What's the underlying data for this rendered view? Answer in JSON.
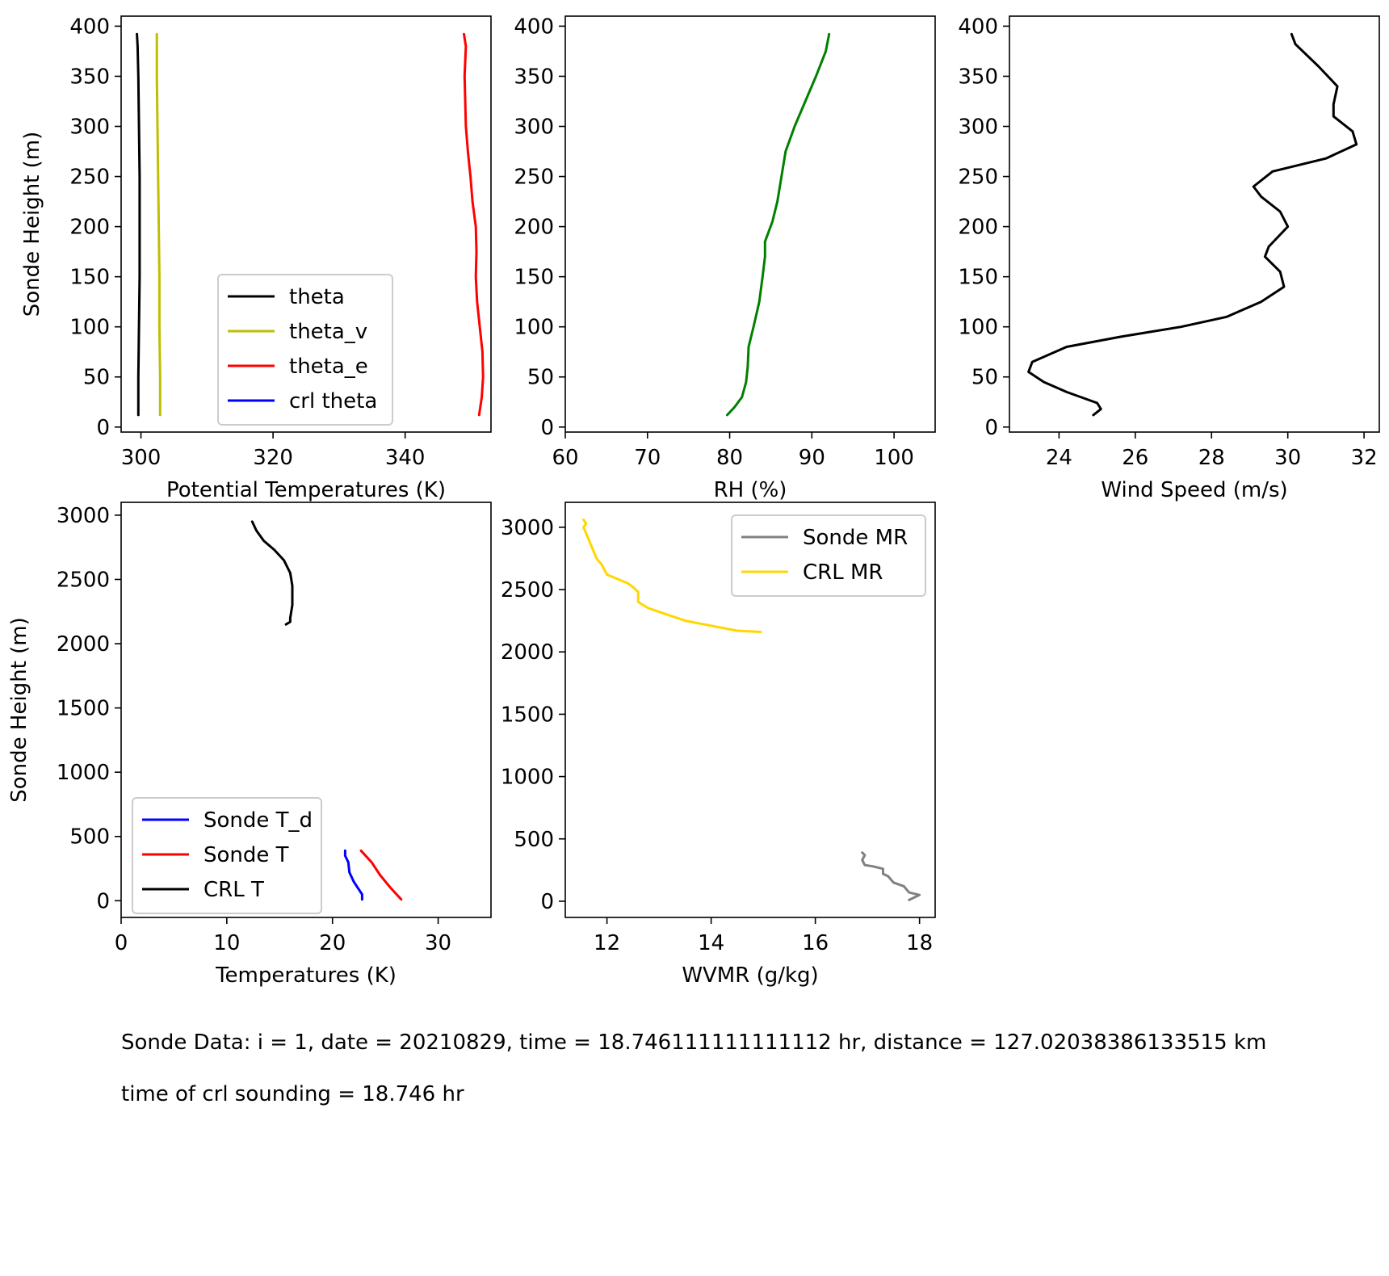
{
  "chart_data": [
    {
      "id": "potential-temperature",
      "type": "line",
      "xlabel": "Potential Temperatures (K)",
      "ylabel": "Sonde Height (m)",
      "xlim": [
        297,
        353
      ],
      "ylim": [
        -5,
        410
      ],
      "xticks": [
        300,
        320,
        340
      ],
      "yticks": [
        0,
        50,
        100,
        150,
        200,
        250,
        300,
        350,
        400
      ],
      "grid": false,
      "legend": "lower-center",
      "series": [
        {
          "name": "theta",
          "color": "#000000",
          "x": [
            299.6,
            299.6,
            299.7,
            299.8,
            299.8,
            299.8,
            299.7,
            299.6,
            299.5,
            299.4
          ],
          "y": [
            12,
            50,
            100,
            150,
            200,
            250,
            300,
            350,
            380,
            392
          ]
        },
        {
          "name": "theta_v",
          "color": "#bfbf00",
          "x": [
            302.9,
            302.9,
            302.8,
            302.8,
            302.7,
            302.6,
            302.5,
            302.4,
            302.4,
            302.4
          ],
          "y": [
            12,
            50,
            100,
            150,
            200,
            250,
            300,
            350,
            380,
            392
          ]
        },
        {
          "name": "theta_e",
          "color": "#ff0000",
          "x": [
            351.2,
            351.6,
            351.8,
            351.7,
            351.3,
            350.9,
            350.7,
            350.8,
            350.7,
            350.2,
            349.9,
            349.5,
            349.2,
            349.1,
            349.0,
            349.2,
            348.9
          ],
          "y": [
            12,
            30,
            50,
            75,
            100,
            125,
            150,
            175,
            200,
            225,
            250,
            275,
            300,
            325,
            350,
            380,
            392
          ]
        },
        {
          "name": "crl theta",
          "color": "#0000ff",
          "x": [],
          "y": []
        }
      ]
    },
    {
      "id": "relative-humidity",
      "type": "line",
      "xlabel": "RH (%)",
      "ylabel": "",
      "xlim": [
        60,
        105
      ],
      "ylim": [
        -5,
        410
      ],
      "xticks": [
        60,
        70,
        80,
        90,
        100
      ],
      "yticks": [
        0,
        50,
        100,
        150,
        200,
        250,
        300,
        350,
        400
      ],
      "grid": false,
      "series": [
        {
          "name": "",
          "color": "#008000",
          "x": [
            79.7,
            80.6,
            81.5,
            82.0,
            82.2,
            82.3,
            82.9,
            83.6,
            84.0,
            84.3,
            84.3,
            85.2,
            85.8,
            86.3,
            86.8,
            87.9,
            89.2,
            90.5,
            91.7,
            92.1
          ],
          "y": [
            12,
            20,
            30,
            45,
            60,
            80,
            100,
            125,
            150,
            170,
            185,
            205,
            225,
            250,
            275,
            300,
            325,
            350,
            375,
            392
          ]
        }
      ]
    },
    {
      "id": "wind-speed",
      "type": "line",
      "xlabel": "Wind Speed (m/s)",
      "ylabel": "",
      "xlim": [
        22.7,
        32.4
      ],
      "ylim": [
        -5,
        410
      ],
      "xticks": [
        24,
        26,
        28,
        30,
        32
      ],
      "yticks": [
        0,
        50,
        100,
        150,
        200,
        250,
        300,
        350,
        400
      ],
      "grid": false,
      "series": [
        {
          "name": "",
          "color": "#000000",
          "x": [
            24.9,
            25.1,
            25.0,
            24.2,
            23.6,
            23.2,
            23.3,
            24.2,
            25.6,
            27.2,
            28.4,
            29.3,
            29.9,
            29.8,
            29.4,
            29.5,
            30.0,
            29.8,
            29.3,
            29.1,
            29.6,
            31.0,
            31.8,
            31.7,
            31.2,
            31.2,
            31.3,
            30.8,
            30.2,
            30.1
          ],
          "y": [
            12,
            18,
            24,
            35,
            45,
            55,
            65,
            80,
            90,
            100,
            110,
            125,
            140,
            155,
            170,
            180,
            200,
            215,
            230,
            240,
            255,
            268,
            282,
            295,
            310,
            322,
            340,
            360,
            382,
            392
          ]
        }
      ]
    },
    {
      "id": "temperature",
      "type": "line",
      "xlabel": "Temperatures (K)",
      "ylabel": "Sonde Height (m)",
      "xlim": [
        0,
        35
      ],
      "ylim": [
        -130,
        3100
      ],
      "xticks": [
        0,
        10,
        20,
        30
      ],
      "yticks": [
        0,
        500,
        1000,
        1500,
        2000,
        2500,
        3000
      ],
      "grid": false,
      "legend": "lower-left",
      "series": [
        {
          "name": "Sonde T_d",
          "color": "#0000ff",
          "x": [
            22.8,
            22.8,
            22.4,
            22.0,
            21.6,
            21.5,
            21.2,
            21.2
          ],
          "y": [
            10,
            50,
            100,
            150,
            220,
            300,
            350,
            390
          ]
        },
        {
          "name": "Sonde T",
          "color": "#ff0000",
          "x": [
            26.5,
            25.5,
            24.5,
            23.7,
            22.7
          ],
          "y": [
            10,
            100,
            200,
            300,
            390
          ]
        },
        {
          "name": "CRL T",
          "color": "#000000",
          "x": [
            15.6,
            16.0,
            16.0,
            16.2,
            16.2,
            16.0,
            15.4,
            14.5,
            13.5,
            12.8,
            12.4
          ],
          "y": [
            2150,
            2170,
            2200,
            2300,
            2450,
            2550,
            2650,
            2730,
            2800,
            2880,
            2950
          ]
        }
      ]
    },
    {
      "id": "water-vapor-mixing-ratio",
      "type": "line",
      "xlabel": "WVMR (g/kg)",
      "ylabel": "",
      "xlim": [
        11.2,
        18.3
      ],
      "ylim": [
        -130,
        3200
      ],
      "xticks": [
        12,
        14,
        16,
        18
      ],
      "yticks": [
        0,
        500,
        1000,
        1500,
        2000,
        2500,
        3000
      ],
      "grid": false,
      "legend": "upper-right",
      "series": [
        {
          "name": "Sonde MR",
          "color": "#808080",
          "x": [
            17.8,
            18.0,
            17.8,
            17.7,
            17.5,
            17.4,
            17.3,
            17.3,
            17.1,
            16.95,
            16.9,
            16.95,
            16.9
          ],
          "y": [
            10,
            50,
            70,
            120,
            150,
            200,
            220,
            260,
            280,
            290,
            330,
            370,
            390
          ]
        },
        {
          "name": "CRL MR",
          "color": "#ffd700",
          "x": [
            14.95,
            14.5,
            13.5,
            12.8,
            12.6,
            12.6,
            12.5,
            12.4,
            12.0,
            11.9,
            11.8,
            11.7,
            11.55,
            11.6,
            11.55
          ],
          "y": [
            2160,
            2170,
            2250,
            2350,
            2400,
            2480,
            2520,
            2550,
            2620,
            2700,
            2750,
            2850,
            3000,
            3030,
            3060
          ]
        }
      ]
    }
  ],
  "annotations": {
    "line1": "Sonde Data: i = 1, date = 20210829, time = 18.746111111111112 hr, distance = 127.02038386133515 km",
    "line2": "time of crl sounding = 18.746 hr"
  }
}
